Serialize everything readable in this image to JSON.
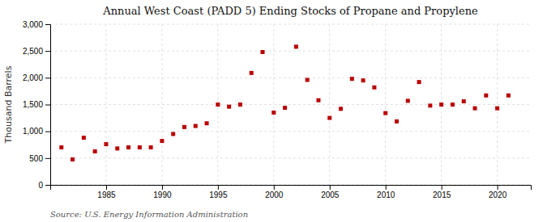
{
  "chart_data": {
    "type": "scatter",
    "title": "Annual West Coast (PADD 5) Ending Stocks of Propane and Propylene",
    "ylabel": "Thousand Barrels",
    "annotations": [
      "Source: U.S. Energy Information Administration"
    ],
    "x": [
      1981,
      1982,
      1983,
      1984,
      1985,
      1986,
      1987,
      1988,
      1989,
      1990,
      1991,
      1992,
      1993,
      1994,
      1995,
      1996,
      1997,
      1998,
      1999,
      2000,
      2001,
      2002,
      2003,
      2004,
      2005,
      2006,
      2007,
      2008,
      2009,
      2010,
      2011,
      2012,
      2013,
      2014,
      2015,
      2016,
      2017,
      2018,
      2019,
      2020,
      2021
    ],
    "values": [
      700,
      475,
      880,
      625,
      760,
      680,
      700,
      700,
      700,
      820,
      950,
      1080,
      1100,
      1150,
      1500,
      1460,
      1500,
      2090,
      2480,
      1350,
      1440,
      2580,
      1960,
      1580,
      1250,
      1420,
      1980,
      1950,
      1820,
      1340,
      1185,
      1570,
      1920,
      1480,
      1500,
      1500,
      1560,
      1430,
      1670,
      1430,
      1670
    ],
    "color": "#bb0000",
    "marker": "square",
    "xlim": [
      1980,
      2023
    ],
    "ylim": [
      0,
      3000
    ],
    "xticks": [
      1985,
      1990,
      1995,
      2000,
      2005,
      2010,
      2015,
      2020
    ],
    "yticks": [
      0,
      500,
      {
        "value": 1000,
        "label": "1,000"
      },
      {
        "value": 1500,
        "label": "1,500"
      },
      {
        "value": 2000,
        "label": "2,000"
      },
      {
        "value": 2500,
        "label": "2,500"
      },
      {
        "value": 3000,
        "label": "3,000"
      }
    ],
    "grid": true
  }
}
